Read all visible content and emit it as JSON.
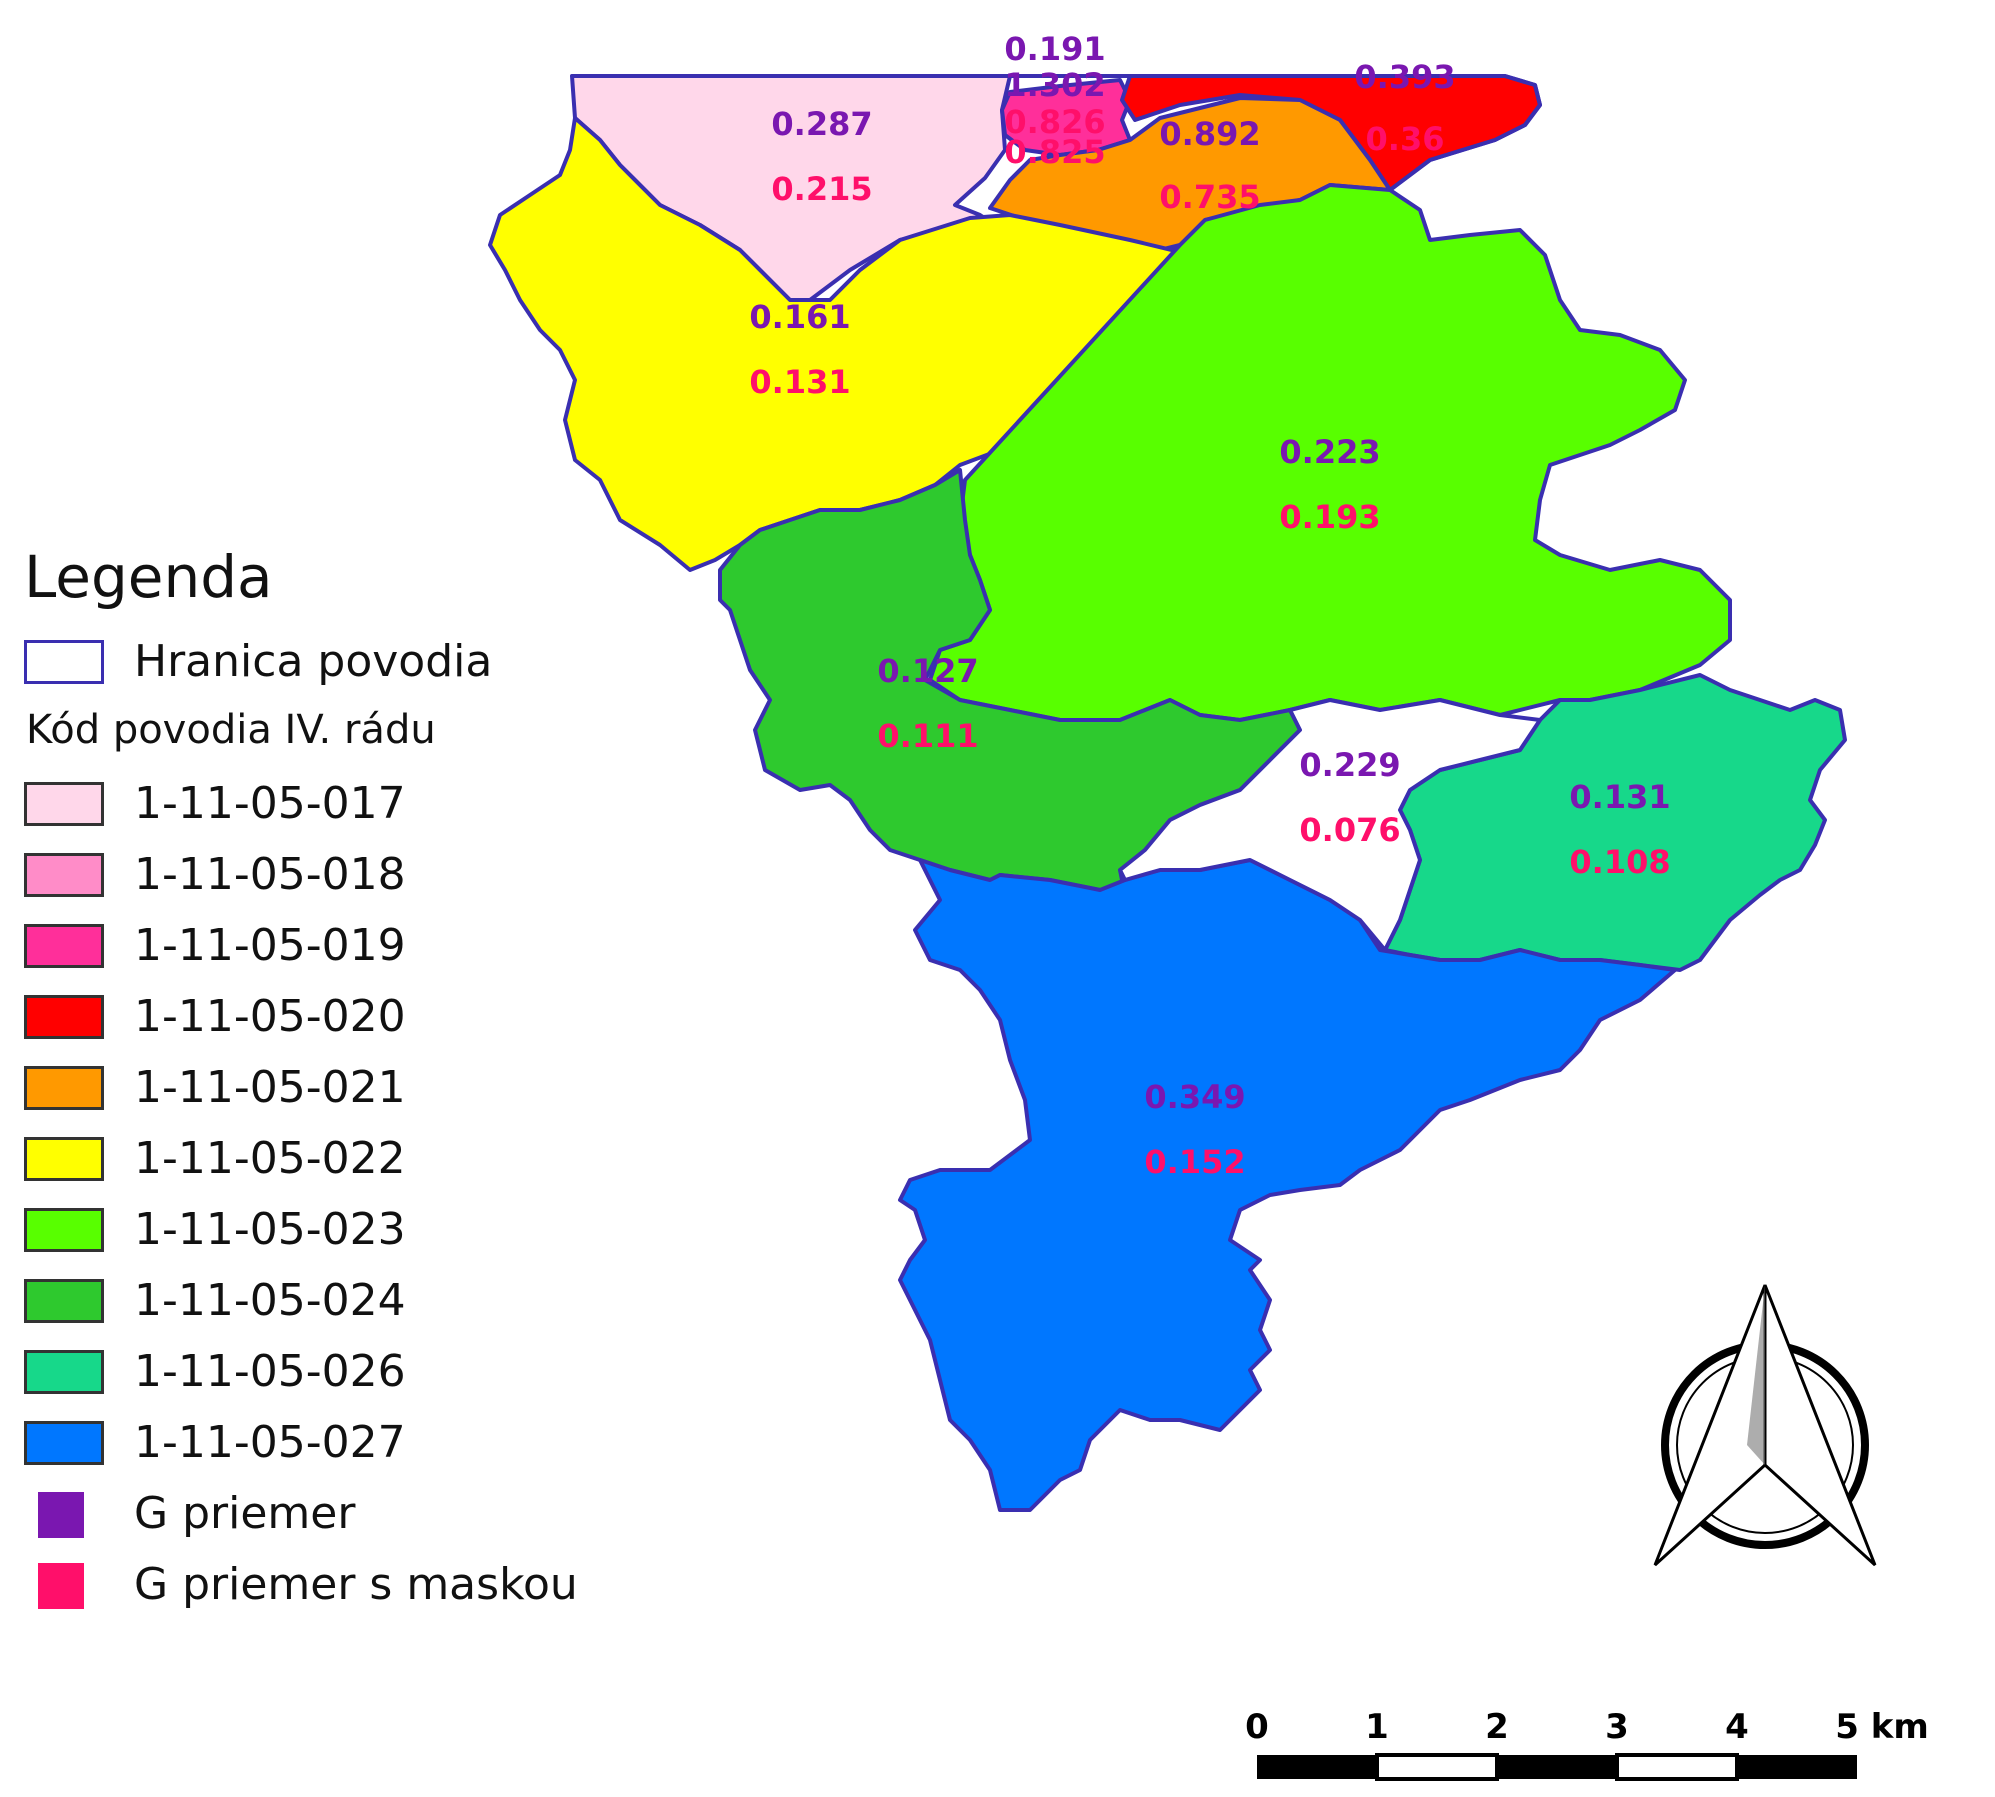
{
  "legend": {
    "title": "Legenda",
    "boundary_label": "Hranica povodia",
    "code_header": "Kód povodia IV. rádu",
    "items": [
      {
        "code": "1-11-05-017",
        "color": "#ffd7ea"
      },
      {
        "code": "1-11-05-018",
        "color": "#ff8cc8"
      },
      {
        "code": "1-11-05-019",
        "color": "#ff2f9a"
      },
      {
        "code": "1-11-05-020",
        "color": "#ff0000"
      },
      {
        "code": "1-11-05-021",
        "color": "#ff9900"
      },
      {
        "code": "1-11-05-022",
        "color": "#ffff00"
      },
      {
        "code": "1-11-05-023",
        "color": "#58ff00"
      },
      {
        "code": "1-11-05-024",
        "color": "#2ec92e"
      },
      {
        "code": "1-11-05-026",
        "color": "#17d88a"
      },
      {
        "code": "1-11-05-027",
        "color": "#0077ff"
      }
    ],
    "markers": [
      {
        "label": "G priemer",
        "color": "#7a17b0"
      },
      {
        "label": "G priemer s maskou",
        "color": "#ff0f6a"
      }
    ]
  },
  "regions": [
    {
      "code": "1-11-05-017",
      "g_mean": "0.287",
      "g_mean_masked": "0.215"
    },
    {
      "code": "1-11-05-018",
      "g_mean": "0.191",
      "g_mean_masked": "0.826"
    },
    {
      "code": "1-11-05-019",
      "g_mean": "1.302",
      "g_mean_masked": "0.825"
    },
    {
      "code": "1-11-05-020",
      "g_mean": "0.393",
      "g_mean_masked": "0.36"
    },
    {
      "code": "1-11-05-021",
      "g_mean": "0.892",
      "g_mean_masked": "0.735"
    },
    {
      "code": "1-11-05-022",
      "g_mean": "0.161",
      "g_mean_masked": "0.131"
    },
    {
      "code": "1-11-05-023",
      "g_mean": "0.223",
      "g_mean_masked": "0.193"
    },
    {
      "code": "1-11-05-024",
      "g_mean": "0.127",
      "g_mean_masked": "0.111"
    },
    {
      "code": "unlabeled",
      "g_mean": "0.229",
      "g_mean_masked": "0.076"
    },
    {
      "code": "1-11-05-026",
      "g_mean": "0.131",
      "g_mean_masked": "0.108"
    },
    {
      "code": "1-11-05-027",
      "g_mean": "0.349",
      "g_mean_masked": "0.152"
    }
  ],
  "scalebar": {
    "ticks": [
      "0",
      "1",
      "2",
      "3",
      "4",
      "5 km"
    ]
  },
  "colors": {
    "boundary": "#3a2fb0",
    "label_g_mean": "#7a17b0",
    "label_g_mean_masked": "#ff0f6a"
  }
}
